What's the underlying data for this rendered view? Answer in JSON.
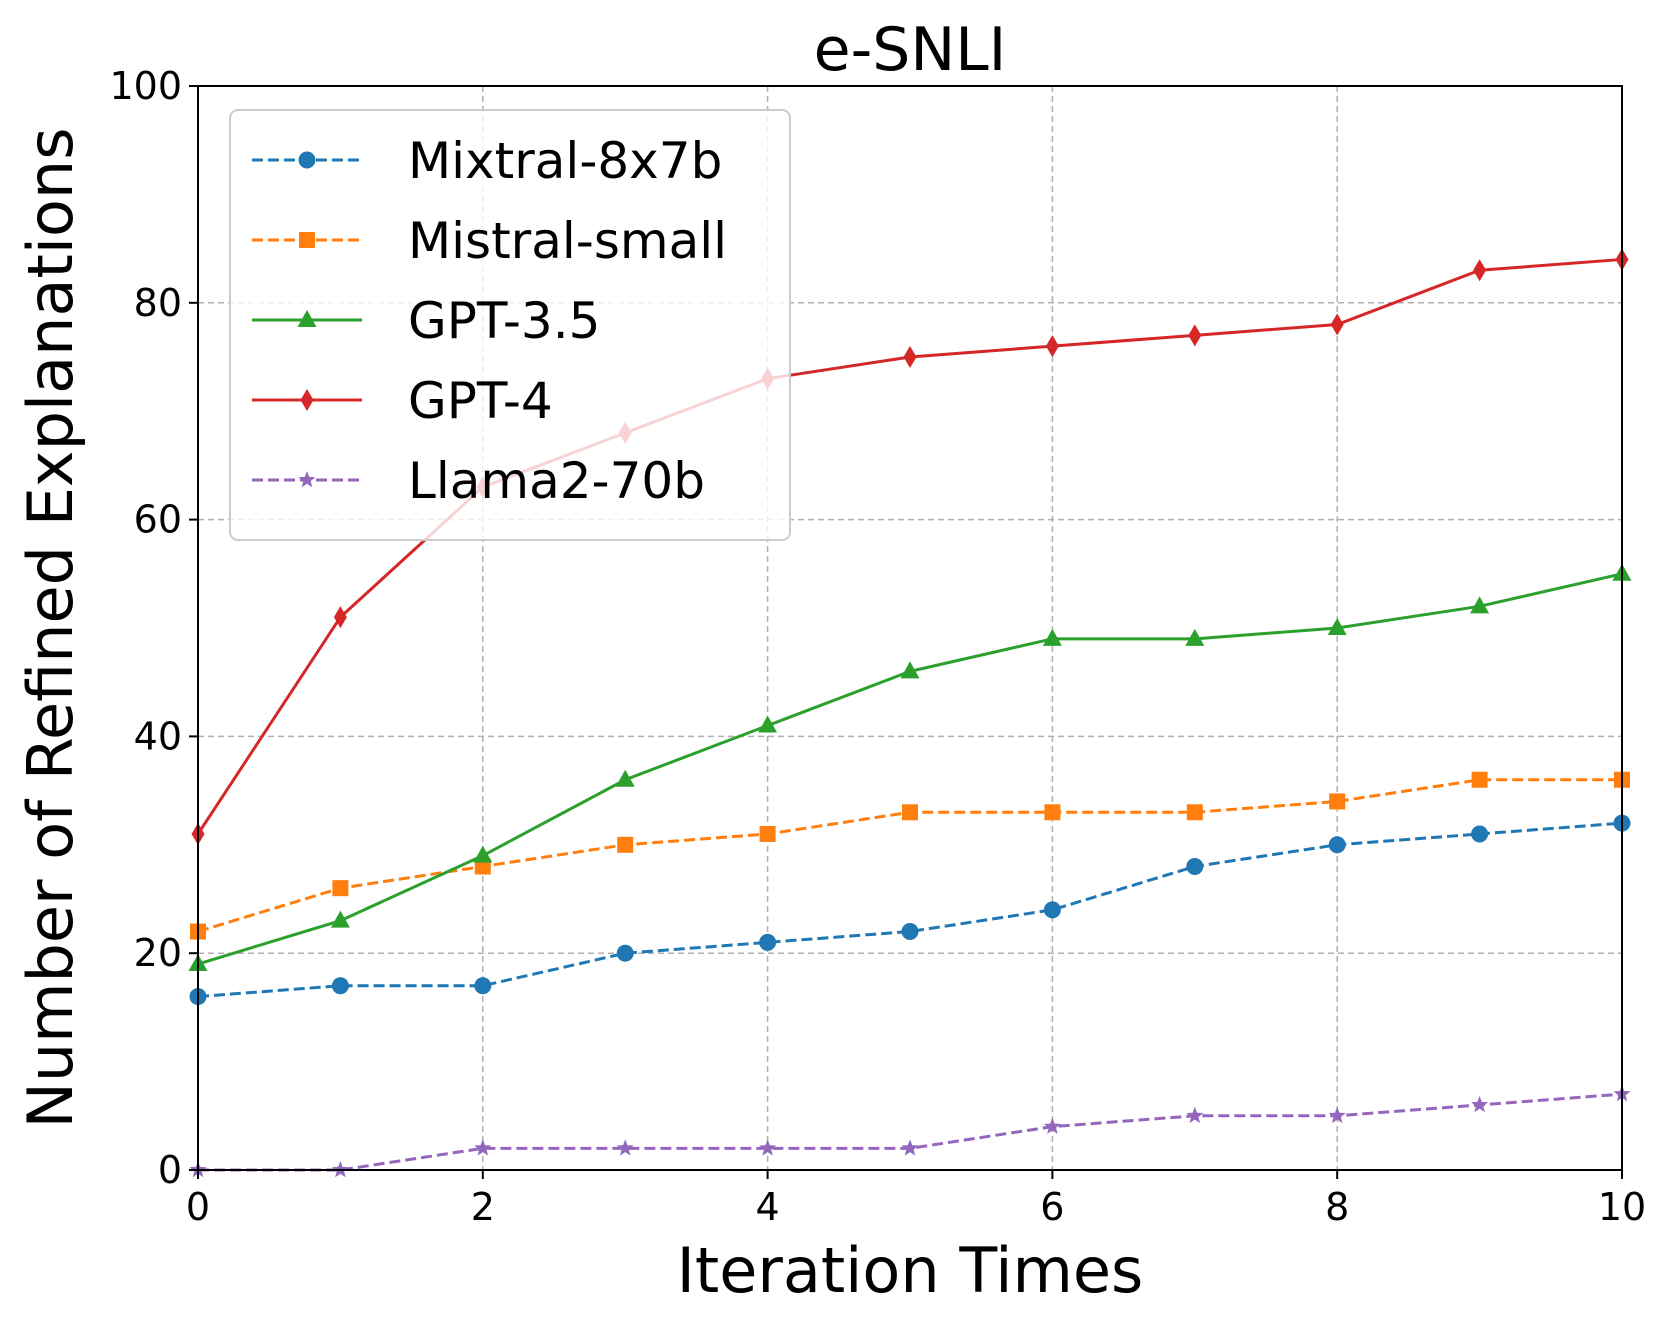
{
  "chart_data": {
    "type": "line",
    "title": "e-SNLI",
    "xlabel": "Iteration Times",
    "ylabel": "Number of Refined Explanations",
    "xlim": [
      0,
      10
    ],
    "ylim": [
      0,
      100
    ],
    "xticks": [
      0,
      2,
      4,
      6,
      8,
      10
    ],
    "yticks": [
      0,
      20,
      40,
      60,
      80,
      100
    ],
    "grid": true,
    "legend_position": "top-left",
    "x": [
      0,
      1,
      2,
      3,
      4,
      5,
      6,
      7,
      8,
      9,
      10
    ],
    "series": [
      {
        "name": "Mixtral-8x7b",
        "color": "#1f77b4",
        "linestyle": "dashed",
        "marker": "circle",
        "values": [
          16,
          17,
          17,
          20,
          21,
          22,
          24,
          28,
          30,
          31,
          32
        ]
      },
      {
        "name": "Mistral-small",
        "color": "#ff7f0e",
        "linestyle": "dashed",
        "marker": "square",
        "values": [
          22,
          26,
          28,
          30,
          31,
          33,
          33,
          33,
          34,
          36,
          36
        ]
      },
      {
        "name": "GPT-3.5",
        "color": "#2ca02c",
        "linestyle": "solid",
        "marker": "triangle",
        "values": [
          19,
          23,
          29,
          36,
          41,
          46,
          49,
          49,
          50,
          52,
          55
        ]
      },
      {
        "name": "GPT-4",
        "color": "#d62728",
        "linestyle": "solid",
        "marker": "diamond",
        "values": [
          31,
          51,
          63,
          68,
          73,
          75,
          76,
          77,
          78,
          83,
          84
        ]
      },
      {
        "name": "Llama2-70b",
        "color": "#9467bd",
        "linestyle": "dashed",
        "marker": "star",
        "values": [
          0,
          0,
          2,
          2,
          2,
          2,
          4,
          5,
          5,
          6,
          7
        ]
      }
    ]
  }
}
